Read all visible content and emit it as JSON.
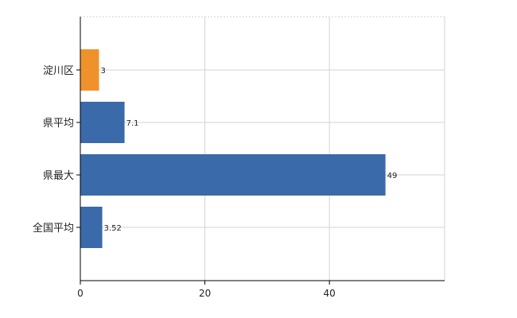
{
  "chart_data": {
    "type": "bar",
    "orientation": "horizontal",
    "categories": [
      "淀川区",
      "県平均",
      "県最大",
      "全国平均"
    ],
    "values": [
      3,
      7.1,
      49,
      3.52
    ],
    "value_labels": [
      "3",
      "7.1",
      "49",
      "3.52"
    ],
    "bar_colors": [
      "#F0922B",
      "#3A6AA9",
      "#3A6AA9",
      "#3A6AA9"
    ],
    "xlim": [
      0,
      58.5
    ],
    "xticks": [
      0,
      20,
      40
    ],
    "xtick_labels": [
      "0",
      "20",
      "40"
    ],
    "grid": true,
    "grid_color": "#d3d3d3",
    "axis_color": "#000000"
  }
}
